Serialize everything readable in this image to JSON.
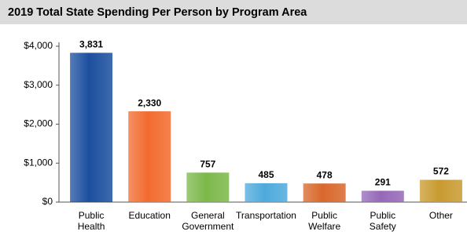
{
  "chart_data": {
    "type": "bar",
    "title": "2019 Total State Spending Per Person by Program Area",
    "categories": [
      "Public\nHealth",
      "Education",
      "General\nGovernment",
      "Transportation",
      "Public\nWelfare",
      "Public\nSafety",
      "Other"
    ],
    "values": [
      3831,
      2330,
      757,
      485,
      478,
      291,
      572
    ],
    "value_labels": [
      "3,831",
      "2,330",
      "757",
      "485",
      "478",
      "291",
      "572"
    ],
    "colors": [
      "#1c4f9e",
      "#f26b2f",
      "#7cb84a",
      "#4eaadb",
      "#d8682c",
      "#9568b8",
      "#c89b30"
    ],
    "ylim": [
      0,
      4000
    ],
    "yticks": [
      {
        "value": 0,
        "label": "$0"
      },
      {
        "value": 1000,
        "label": "$1,000"
      },
      {
        "value": 2000,
        "label": "$2,000"
      },
      {
        "value": 3000,
        "label": "$3,000"
      },
      {
        "value": 4000,
        "label": "$4,000"
      }
    ],
    "grid": false
  }
}
